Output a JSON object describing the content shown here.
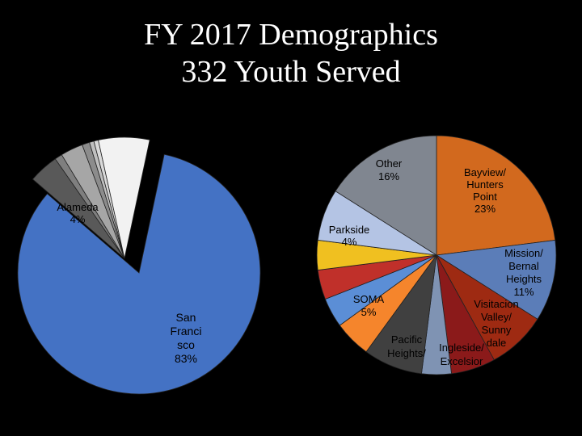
{
  "title": {
    "line1": "FY 2017 Demographics",
    "line2": "332 Youth Served"
  },
  "chart_data": [
    {
      "type": "pie",
      "slices": [
        {
          "id": "sf",
          "lines": [
            "San",
            "Franci",
            "sco",
            "83%"
          ],
          "value": 83,
          "color": "#4472C4"
        },
        {
          "id": "alameda",
          "lines": [
            "Alameda",
            "4%"
          ],
          "value": 4,
          "color": "#595959"
        },
        {
          "id": "s3",
          "lines": [],
          "value": 1,
          "color": "#7F7F7F"
        },
        {
          "id": "s4",
          "lines": [],
          "value": 3,
          "color": "#A6A6A6"
        },
        {
          "id": "s5",
          "lines": [],
          "value": 1,
          "color": "#8C8C8C"
        },
        {
          "id": "s6",
          "lines": [],
          "value": 0.6,
          "color": "#BFBFBF"
        },
        {
          "id": "s7",
          "lines": [],
          "value": 0.6,
          "color": "#D9D9D9"
        },
        {
          "id": "s8",
          "lines": [],
          "value": 6.8,
          "color": "#F2F2F2"
        }
      ]
    },
    {
      "type": "pie",
      "slices": [
        {
          "id": "bayview",
          "lines": [
            "Bayview/",
            "Hunters",
            "Point",
            "23%"
          ],
          "value": 23,
          "color": "#D2691E"
        },
        {
          "id": "mission",
          "lines": [
            "Mission/",
            "Bernal",
            "Heights",
            "11%"
          ],
          "value": 11,
          "color": "#5B7DB8"
        },
        {
          "id": "visitacion",
          "lines": [
            "Visitacion",
            "Valley/",
            "Sunny",
            "dale"
          ],
          "value": 8,
          "color": "#9E2A12"
        },
        {
          "id": "ingleside",
          "lines": [
            "Ingleside/",
            "Excelsior"
          ],
          "value": 6,
          "color": "#8B1A1A"
        },
        {
          "id": "pacific",
          "lines": [
            "Pacific",
            "Heights/"
          ],
          "value": 4,
          "color": "#7F93B3"
        },
        {
          "id": "dark",
          "lines": [],
          "value": 8,
          "color": "#404040"
        },
        {
          "id": "soma",
          "lines": [
            "SOMA",
            "5%"
          ],
          "value": 5,
          "color": "#F5852C"
        },
        {
          "id": "blue2",
          "lines": [],
          "value": 4,
          "color": "#5B8ED6"
        },
        {
          "id": "red2",
          "lines": [],
          "value": 4,
          "color": "#C0302A"
        },
        {
          "id": "parkside",
          "lines": [
            "Parkside",
            "4%"
          ],
          "value": 4,
          "color": "#F0C020"
        },
        {
          "id": "lavender",
          "lines": [],
          "value": 7,
          "color": "#B4C4E4"
        },
        {
          "id": "other",
          "lines": [
            "Other",
            "16%"
          ],
          "value": 16,
          "color": "#808690"
        }
      ]
    }
  ]
}
